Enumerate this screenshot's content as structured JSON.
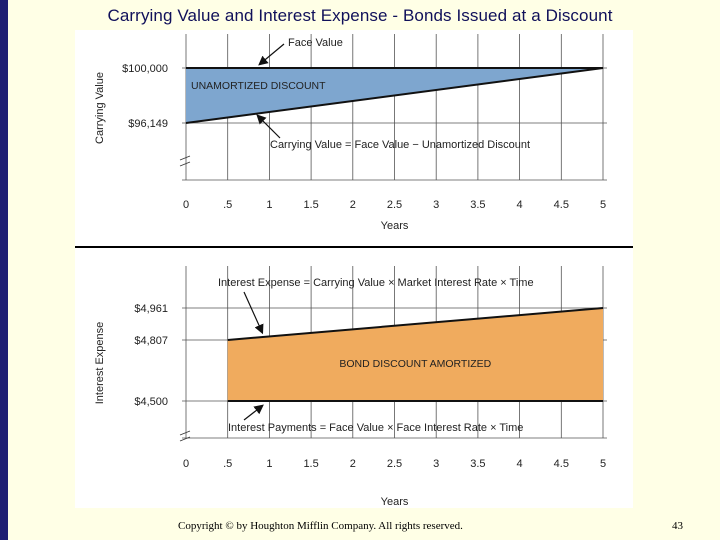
{
  "slide": {
    "title": "Carrying Value and Interest Expense - Bonds Issued at a Discount",
    "footer": "Copyright © by Houghton Mifflin Company. All rights reserved.",
    "page_number": "43",
    "accent_color": "#1f1f73"
  },
  "chart_data": [
    {
      "type": "area",
      "ylabel": "Carrying Value",
      "xlabel": "Years",
      "x_ticks": [
        "0",
        ".5",
        "1",
        "1.5",
        "2",
        "2.5",
        "3",
        "3.5",
        "4",
        "4.5",
        "5"
      ],
      "y_ticks": [
        "$100,000",
        "$96,149"
      ],
      "face_value": 100000,
      "carrying_value_start": 96149,
      "carrying_value_end": 100000,
      "x_range": [
        0,
        5
      ],
      "series": [
        {
          "name": "Face Value",
          "x": [
            0,
            5
          ],
          "y": [
            100000,
            100000
          ]
        },
        {
          "name": "Carrying Value = Face Value − Unamortized Discount",
          "x": [
            0,
            5
          ],
          "y": [
            96149,
            100000
          ]
        }
      ],
      "region_label": "UNAMORTIZED DISCOUNT",
      "region_color": "#7ea6cf",
      "annotations": [
        "Face Value",
        "Carrying Value = Face Value − Unamortized Discount"
      ]
    },
    {
      "type": "area",
      "ylabel": "Interest Expense",
      "xlabel": "Years",
      "x_ticks": [
        "0",
        ".5",
        "1",
        "1.5",
        "2",
        "2.5",
        "3",
        "3.5",
        "4",
        "4.5",
        "5"
      ],
      "y_ticks": [
        "$4,961",
        "$4,807",
        "$4,500"
      ],
      "x_range": [
        0.5,
        5
      ],
      "series": [
        {
          "name": "Interest Expense = Carrying Value × Market Interest Rate × Time",
          "x": [
            0.5,
            5
          ],
          "y": [
            4807,
            4961
          ]
        },
        {
          "name": "Interest Payments = Face Value × Face Interest Rate × Time",
          "x": [
            0.5,
            5
          ],
          "y": [
            4500,
            4500
          ]
        }
      ],
      "region_label": "BOND DISCOUNT AMORTIZED",
      "region_color": "#f0ab5e",
      "annotations": [
        "Interest Expense = Carrying Value × Market Interest Rate × Time",
        "Interest Payments = Face Value × Face Interest Rate × Time"
      ]
    }
  ]
}
